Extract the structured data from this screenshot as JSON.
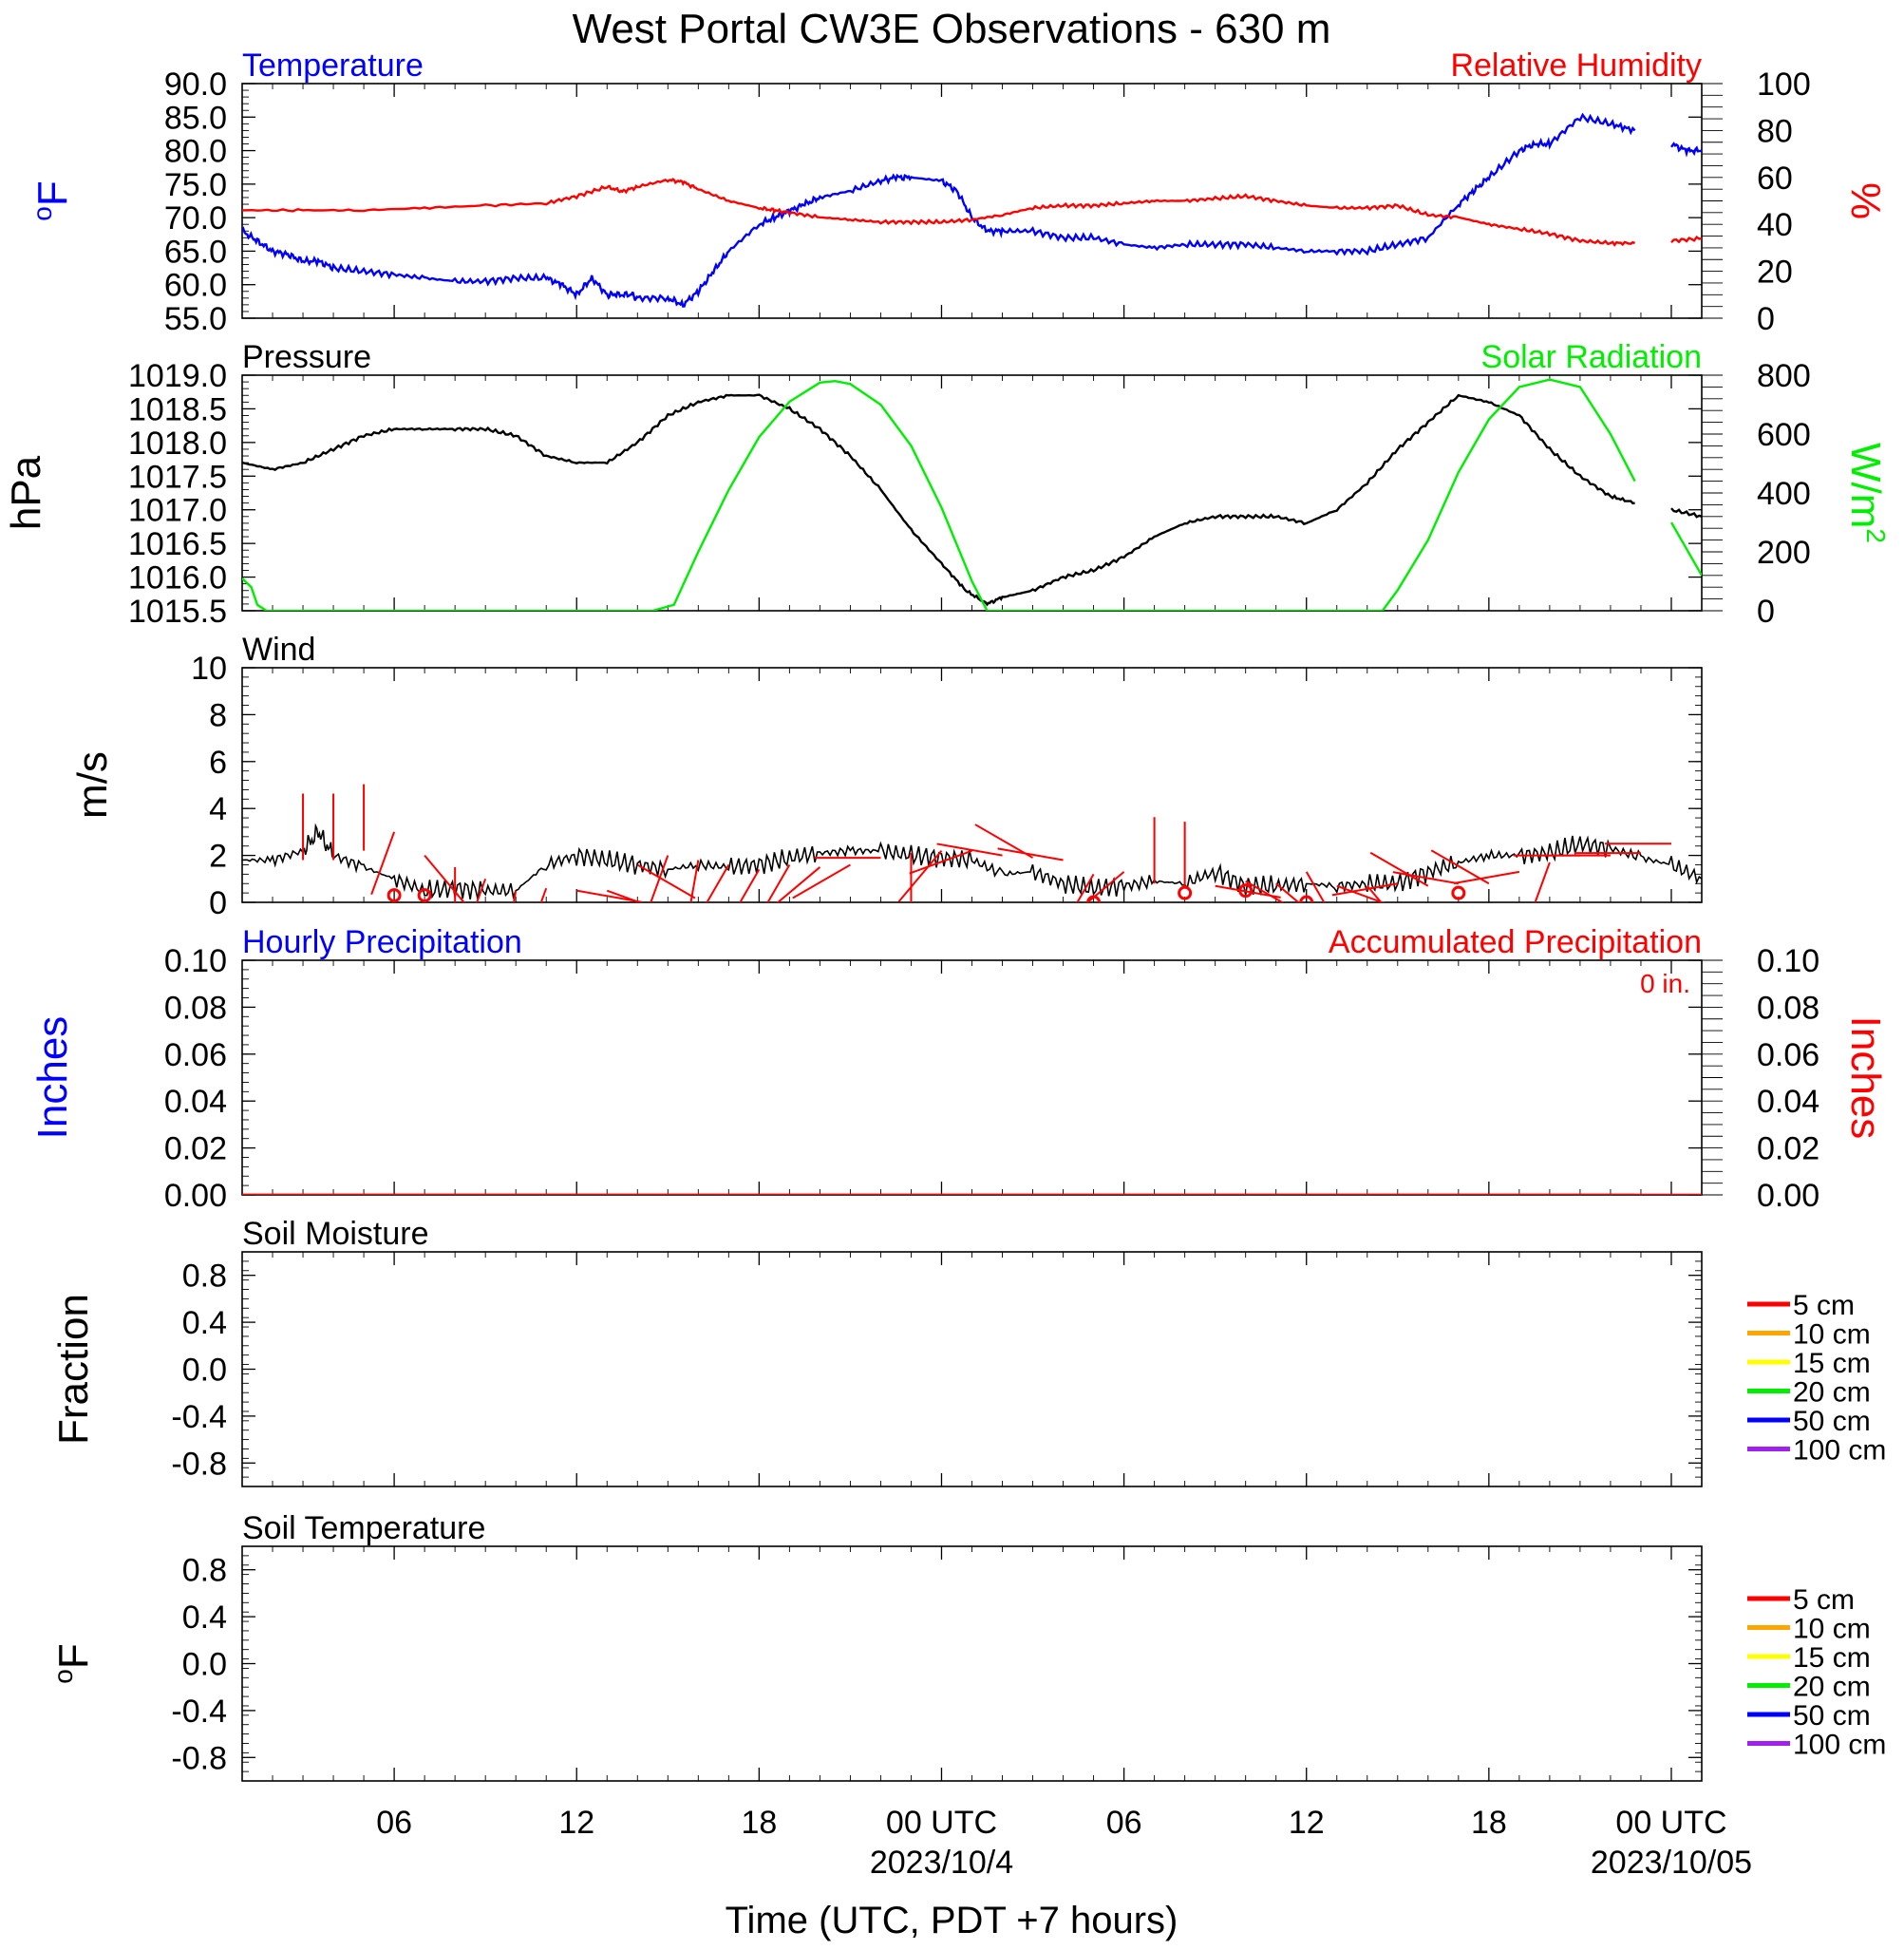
{
  "title": "West Portal CW3E Observations - 630 m",
  "xaxis": {
    "label": "Time (UTC, PDT +7 hours)",
    "tick_labels": [
      "06",
      "12",
      "18",
      "00 UTC",
      "06",
      "12",
      "18",
      "00 UTC"
    ],
    "date_labels": [
      "2023/10/4",
      "2023/10/05"
    ]
  },
  "colors": {
    "temperature": "#0000ff",
    "humidity": "#ff0000",
    "pressure": "#000000",
    "solar": "#00ee00",
    "wind_speed": "#000000",
    "wind_barb": "#ff0000",
    "precip": "#ff0000"
  },
  "panels": {
    "temp_rh": {
      "left_title": "Temperature",
      "right_title": "Relative Humidity",
      "left_unit": "oF",
      "right_unit": "%",
      "left_ticks": [
        "90.0",
        "85.0",
        "80.0",
        "75.0",
        "70.0",
        "65.0",
        "60.0",
        "55.0"
      ],
      "right_ticks": [
        "100",
        "80",
        "60",
        "40",
        "20",
        "0"
      ]
    },
    "pressure_solar": {
      "left_title": "Pressure",
      "right_title": "Solar Radiation",
      "left_unit": "hPa",
      "right_unit": "W/m2",
      "left_ticks": [
        "1019.0",
        "1018.5",
        "1018.0",
        "1017.5",
        "1017.0",
        "1016.5",
        "1016.0",
        "1015.5"
      ],
      "right_ticks": [
        "800",
        "600",
        "400",
        "200",
        "0"
      ]
    },
    "wind": {
      "left_title": "Wind",
      "left_unit": "m/s",
      "left_ticks": [
        "10",
        "8",
        "6",
        "4",
        "2",
        "0"
      ]
    },
    "precip": {
      "left_title": "Hourly Precipitation",
      "right_title": "Accumulated Precipitation",
      "left_unit": "Inches",
      "right_unit": "Inches",
      "accum_note": "0 in.",
      "left_ticks": [
        "0.10",
        "0.08",
        "0.06",
        "0.04",
        "0.02",
        "0.00"
      ],
      "right_ticks": [
        "0.10",
        "0.08",
        "0.06",
        "0.04",
        "0.02",
        "0.00"
      ]
    },
    "soil_moisture": {
      "left_title": "Soil Moisture",
      "left_unit": "Fraction",
      "left_ticks": [
        "0.8",
        "0.4",
        "0.0",
        "-0.4",
        "-0.8"
      ],
      "legend": [
        "5 cm",
        "10 cm",
        "15 cm",
        "20 cm",
        "50 cm",
        "100 cm"
      ]
    },
    "soil_temp": {
      "left_title": "Soil Temperature",
      "left_unit": "oF",
      "left_ticks": [
        "0.8",
        "0.4",
        "0.0",
        "-0.4",
        "-0.8"
      ],
      "legend": [
        "5 cm",
        "10 cm",
        "15 cm",
        "20 cm",
        "50 cm",
        "100 cm"
      ]
    }
  },
  "legend_colors": [
    "#ff0000",
    "#ffa500",
    "#ffff00",
    "#00ee00",
    "#0000ff",
    "#a020f0"
  ],
  "chart_data": [
    {
      "type": "line",
      "x_unit": "hours since 2023-10-03 01 UTC",
      "xlim": [
        0,
        48
      ],
      "series": [
        {
          "name": "Temperature",
          "axis": "left",
          "ylim": [
            55,
            90
          ],
          "x": [
            0,
            0.5,
            1,
            1.5,
            2,
            2.5,
            3,
            4,
            5,
            6,
            7,
            8,
            9,
            10,
            10.5,
            11,
            11.5,
            12,
            12.3,
            12.8,
            13,
            14,
            14.5,
            15,
            15.5,
            16,
            17,
            17.5,
            18,
            18.5,
            19,
            20,
            21,
            21.5,
            22,
            23,
            23.5,
            24,
            24.5,
            25,
            26,
            27,
            28,
            29,
            30,
            31,
            32,
            33,
            34,
            35,
            36,
            37,
            38,
            39,
            40,
            40.5,
            41,
            42,
            42.5,
            43,
            44,
            45,
            45.8,
            46.3,
            47,
            47.5,
            48
          ],
          "y": [
            68,
            66.5,
            65,
            64.5,
            63.5,
            63.5,
            62.5,
            62,
            61.5,
            61,
            60.5,
            60.5,
            61,
            61,
            60,
            58.5,
            61,
            58.5,
            58.5,
            58.5,
            58,
            58,
            57,
            59,
            62,
            65,
            69,
            70,
            71,
            72,
            73,
            74,
            75.5,
            76,
            76,
            75.5,
            74,
            70,
            68,
            68,
            68,
            67,
            67,
            66,
            65.5,
            66,
            66,
            66,
            65.5,
            65,
            65,
            65,
            66,
            67,
            72,
            74,
            76,
            80,
            81,
            81,
            85,
            84,
            83,
            null,
            81,
            80,
            80
          ]
        },
        {
          "name": "Relative Humidity",
          "axis": "right",
          "ylim": [
            0,
            100
          ],
          "x": [
            0,
            2,
            4,
            6,
            8,
            10,
            11,
            12,
            12.5,
            13,
            14,
            14.5,
            15,
            16,
            17,
            17.5,
            18,
            19,
            20,
            21,
            22,
            23,
            24,
            25,
            26,
            27,
            28,
            29,
            30,
            31,
            32,
            33,
            34,
            35,
            36,
            37,
            38,
            39,
            40,
            41,
            42,
            43,
            44,
            45,
            45.8,
            46.3,
            47,
            48
          ],
          "y": [
            46,
            46,
            46,
            47,
            48,
            49,
            52,
            56,
            54,
            56,
            59,
            58,
            55,
            50,
            47,
            46,
            45,
            43,
            42,
            41,
            41,
            41,
            42,
            44,
            47,
            48,
            48,
            49,
            50,
            50,
            51,
            52,
            50,
            48,
            47,
            47,
            48,
            44,
            43,
            40,
            38,
            36,
            33,
            32,
            32,
            null,
            33,
            34
          ]
        }
      ]
    },
    {
      "type": "line",
      "x_unit": "hours since 2023-10-03 01 UTC",
      "xlim": [
        0,
        48
      ],
      "series": [
        {
          "name": "Pressure",
          "axis": "left",
          "ylim": [
            1015.5,
            1019.0
          ],
          "x": [
            0,
            1,
            2,
            3,
            4,
            5,
            6,
            7,
            8,
            9,
            10,
            11,
            12,
            13,
            14,
            15,
            16,
            17,
            18,
            19,
            20,
            21,
            22,
            23,
            23.8,
            24.5,
            25,
            26,
            27,
            28,
            29,
            30,
            31,
            32,
            33,
            34,
            35,
            36,
            37,
            38,
            39,
            40,
            41,
            42,
            43,
            44,
            45,
            45.8,
            46.3,
            47,
            48
          ],
          "y": [
            1017.7,
            1017.6,
            1017.7,
            1017.9,
            1018.1,
            1018.2,
            1018.2,
            1018.2,
            1018.2,
            1018.1,
            1017.8,
            1017.7,
            1017.7,
            1018.0,
            1018.4,
            1018.6,
            1018.7,
            1018.7,
            1018.5,
            1018.2,
            1017.8,
            1017.3,
            1016.7,
            1016.2,
            1015.8,
            1015.6,
            1015.7,
            1015.8,
            1016.0,
            1016.1,
            1016.3,
            1016.6,
            1016.8,
            1016.9,
            1016.9,
            1016.9,
            1016.8,
            1017.0,
            1017.4,
            1017.9,
            1018.3,
            1018.7,
            1018.6,
            1018.4,
            1017.9,
            1017.5,
            1017.2,
            1017.1,
            null,
            1017.0,
            1016.9
          ]
        },
        {
          "name": "Solar Radiation",
          "axis": "right",
          "ylim": [
            0,
            800
          ],
          "x": [
            0,
            0.3,
            0.5,
            0.8,
            1,
            13.5,
            14.2,
            15,
            16,
            17,
            18,
            19,
            19.5,
            20,
            21,
            22,
            23,
            24,
            24.5,
            25,
            26,
            27,
            28,
            29,
            30,
            31,
            32,
            33,
            34,
            37.5,
            38,
            39,
            40,
            41,
            42,
            43,
            44,
            45,
            45.8,
            46.3,
            47,
            48
          ],
          "y": [
            110,
            80,
            20,
            0,
            0,
            0,
            20,
            200,
            410,
            590,
            710,
            775,
            780,
            770,
            700,
            560,
            350,
            100,
            0,
            0,
            0,
            0,
            0,
            0,
            0,
            0,
            0,
            0,
            0,
            0,
            70,
            240,
            470,
            650,
            760,
            785,
            760,
            600,
            440,
            null,
            300,
            120
          ]
        }
      ]
    },
    {
      "type": "line",
      "x_unit": "hours since 2023-10-03 01 UTC",
      "xlim": [
        0,
        48
      ],
      "series": [
        {
          "name": "Wind",
          "axis": "left",
          "ylim": [
            0,
            10
          ],
          "x": [
            0,
            1,
            2,
            2.5,
            3,
            4,
            5,
            6,
            7,
            8,
            9,
            10,
            11,
            12,
            13,
            14,
            15,
            16,
            17,
            18,
            19,
            20,
            21,
            22,
            23,
            24,
            25,
            26,
            27,
            28,
            29,
            30,
            31,
            32,
            33,
            34,
            35,
            36,
            37,
            38,
            39,
            40,
            41,
            42,
            43,
            44,
            45,
            46,
            47,
            48
          ],
          "y": [
            1.8,
            1.8,
            2.2,
            3,
            2.0,
            1.5,
            1,
            0.5,
            0.6,
            0.5,
            0.5,
            1.6,
            2,
            1.8,
            1.6,
            1.4,
            1.6,
            1.5,
            1.6,
            1.9,
            2.1,
            2.2,
            2.2,
            2.0,
            1.9,
            1.8,
            1.2,
            1.3,
            0.8,
            0.6,
            0.7,
            0.9,
            0.8,
            1.3,
            0.7,
            0.7,
            0.8,
            0.7,
            0.8,
            0.8,
            1.3,
            1.7,
            2.0,
            2.0,
            2.1,
            2.5,
            2.3,
            1.9,
            1.6,
            1.0
          ]
        },
        {
          "name": "Wind barbs",
          "axis": "left",
          "ylim": [
            0,
            10
          ],
          "x": [
            2,
            3,
            4,
            5,
            6,
            7,
            8,
            9,
            10,
            11,
            12,
            13,
            14,
            15,
            16,
            17,
            18,
            19,
            20,
            21,
            22,
            23,
            24,
            25,
            26,
            27,
            28,
            29,
            30,
            31,
            32,
            33,
            34,
            35,
            36,
            37,
            38,
            39,
            40,
            41,
            42,
            43,
            44,
            45,
            46,
            47
          ],
          "y": [
            1.8,
            1.8,
            2.2,
            3,
            2.0,
            1.5,
            1,
            0.5,
            0.6,
            0.5,
            0.5,
            1.6,
            2,
            1.8,
            1.6,
            1.4,
            1.6,
            1.5,
            1.6,
            1.9,
            2.1,
            2.2,
            2.2,
            2.0,
            1.9,
            1.8,
            1.2,
            1.3,
            0.8,
            0.6,
            0.7,
            0.9,
            0.8,
            1.3,
            0.7,
            0.7,
            0.8,
            0.7,
            0.8,
            0.8,
            1.3,
            1.7,
            2.0,
            2.0,
            2.1,
            2.5
          ],
          "direction_deg": [
            0,
            0,
            0,
            200,
            140,
            180,
            200,
            190,
            200,
            100,
            110,
            120,
            200,
            190,
            210,
            210,
            210,
            230,
            240,
            270,
            180,
            220,
            250,
            280,
            300,
            280,
            210,
            230,
            0,
            0,
            100,
            120,
            130,
            150,
            110,
            140,
            260,
            300,
            280,
            300,
            260,
            200,
            270,
            270,
            270,
            270
          ]
        },
        {
          "name": "Calm",
          "axis": "left",
          "ylim": [
            0,
            10
          ],
          "x": [
            5,
            6,
            28,
            31,
            33,
            35,
            40
          ],
          "y": [
            0.3,
            0.3,
            0,
            0.4,
            0.5,
            0,
            0.4
          ]
        }
      ]
    },
    {
      "type": "line",
      "x_unit": "hours since 2023-10-03 01 UTC",
      "xlim": [
        0,
        48
      ],
      "series": [
        {
          "name": "Hourly Precipitation",
          "axis": "left",
          "ylim": [
            0,
            0.1
          ],
          "x": [
            0,
            48
          ],
          "y": [
            0,
            0
          ]
        },
        {
          "name": "Accumulated Precipitation",
          "axis": "right",
          "ylim": [
            0,
            0.1
          ],
          "x": [
            0,
            45.8,
            46.3,
            48
          ],
          "y": [
            0,
            0,
            null,
            0
          ]
        }
      ]
    },
    {
      "type": "line",
      "title": "Soil Moisture",
      "ylim": [
        -1,
        1
      ],
      "series": []
    },
    {
      "type": "line",
      "title": "Soil Temperature",
      "ylim": [
        -1,
        1
      ],
      "series": []
    }
  ]
}
